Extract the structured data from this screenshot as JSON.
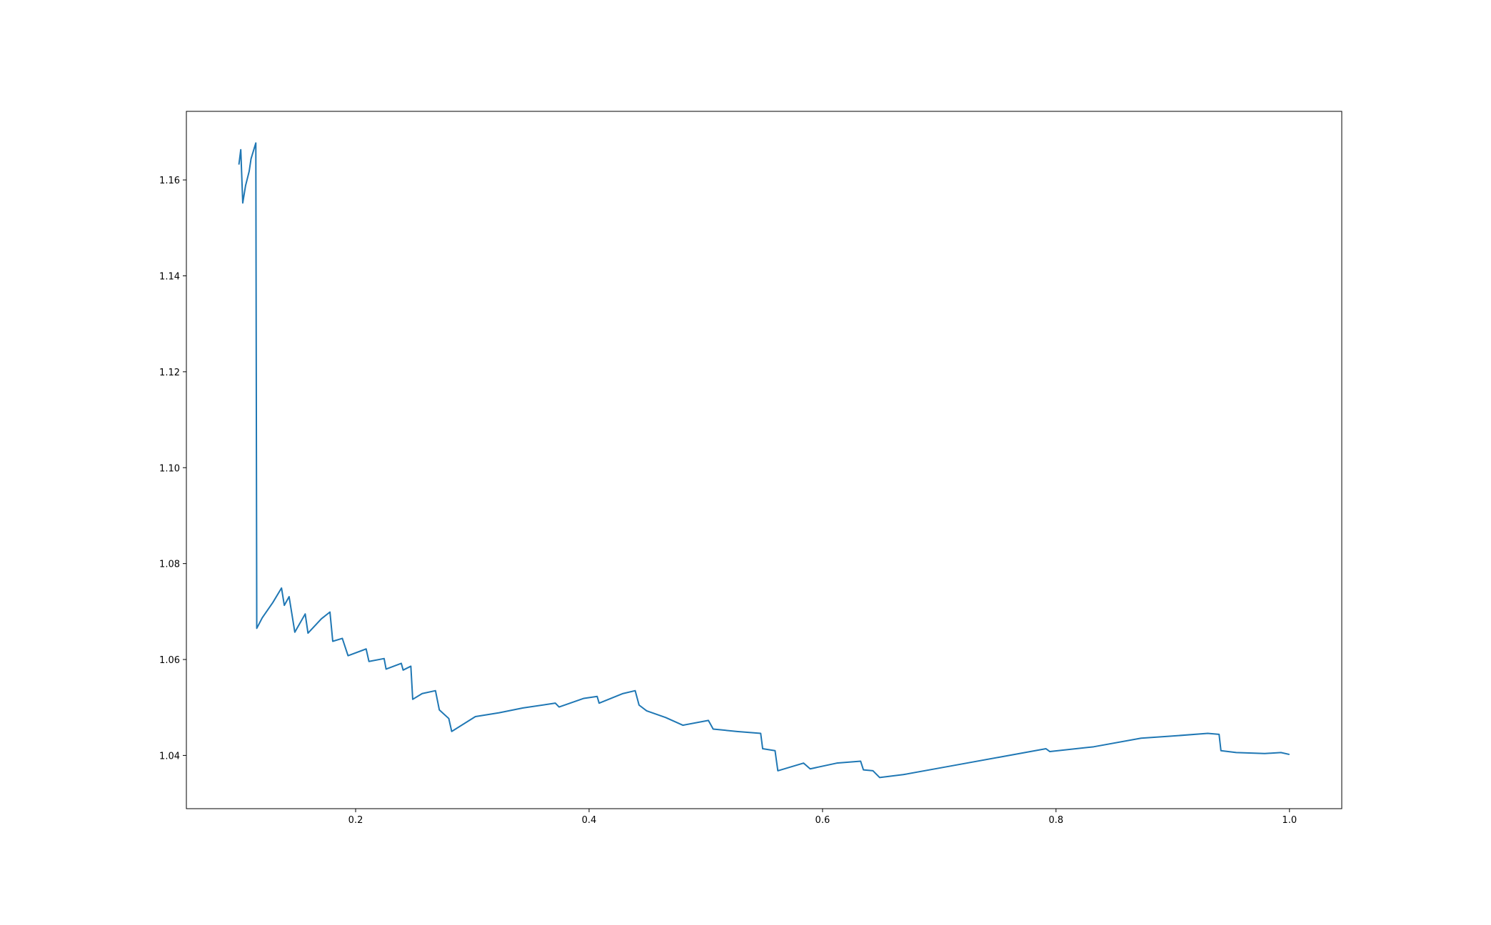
{
  "chart_data": {
    "type": "line",
    "color": "#1f77b4",
    "x": [
      0.1,
      0.1016,
      0.1033,
      0.1057,
      0.1088,
      0.1104,
      0.112,
      0.1145,
      0.1153,
      0.12,
      0.1291,
      0.1365,
      0.1389,
      0.143,
      0.1479,
      0.1568,
      0.1592,
      0.1707,
      0.178,
      0.1804,
      0.1886,
      0.1935,
      0.209,
      0.2114,
      0.2244,
      0.2261,
      0.2391,
      0.2407,
      0.2473,
      0.2489,
      0.257,
      0.2684,
      0.2717,
      0.2798,
      0.2823,
      0.3026,
      0.323,
      0.3434,
      0.3711,
      0.3743,
      0.3955,
      0.4069,
      0.4086,
      0.429,
      0.4395,
      0.4428,
      0.4493,
      0.4656,
      0.4803,
      0.5022,
      0.5063,
      0.5267,
      0.547,
      0.5487,
      0.5593,
      0.5617,
      0.5837,
      0.5894,
      0.6122,
      0.6326,
      0.635,
      0.6432,
      0.6489,
      0.6692,
      0.71,
      0.7507,
      0.7914,
      0.7947,
      0.8322,
      0.8729,
      0.8974,
      0.93,
      0.9397,
      0.9413,
      0.9544,
      0.9788,
      0.9927,
      1.0
    ],
    "values": [
      1.1632,
      1.1663,
      1.1552,
      1.1588,
      1.1618,
      1.1644,
      1.1657,
      1.1677,
      1.0665,
      1.0687,
      1.0719,
      1.0749,
      1.0713,
      1.0731,
      1.0657,
      1.0695,
      1.0655,
      1.0685,
      1.0699,
      1.0638,
      1.0644,
      1.0608,
      1.0622,
      1.0596,
      1.0602,
      1.058,
      1.0592,
      1.0578,
      1.0586,
      1.0517,
      1.0529,
      1.0535,
      1.0495,
      1.0477,
      1.045,
      1.0481,
      1.0489,
      1.0499,
      1.0509,
      1.0501,
      1.0519,
      1.0523,
      1.0509,
      1.0529,
      1.0535,
      1.0505,
      1.0493,
      1.0479,
      1.0463,
      1.0473,
      1.0455,
      1.045,
      1.0446,
      1.0414,
      1.041,
      1.0368,
      1.0384,
      1.0372,
      1.0384,
      1.0388,
      1.037,
      1.0368,
      1.0354,
      1.036,
      1.0378,
      1.0396,
      1.0414,
      1.0408,
      1.0418,
      1.0436,
      1.044,
      1.0446,
      1.0444,
      1.041,
      1.0406,
      1.0404,
      1.0406,
      1.0402
    ],
    "xlim": [
      0.055,
      1.0448
    ],
    "ylim": [
      1.0289,
      1.1743
    ],
    "xticks": [
      0.2,
      0.4,
      0.6,
      0.8,
      {
        "value": 1.0,
        "label": "1.0"
      }
    ],
    "yticks": [
      1.04,
      1.06,
      1.08,
      {
        "value": 1.1,
        "label": "1.10"
      },
      1.12,
      1.14,
      1.16
    ]
  }
}
